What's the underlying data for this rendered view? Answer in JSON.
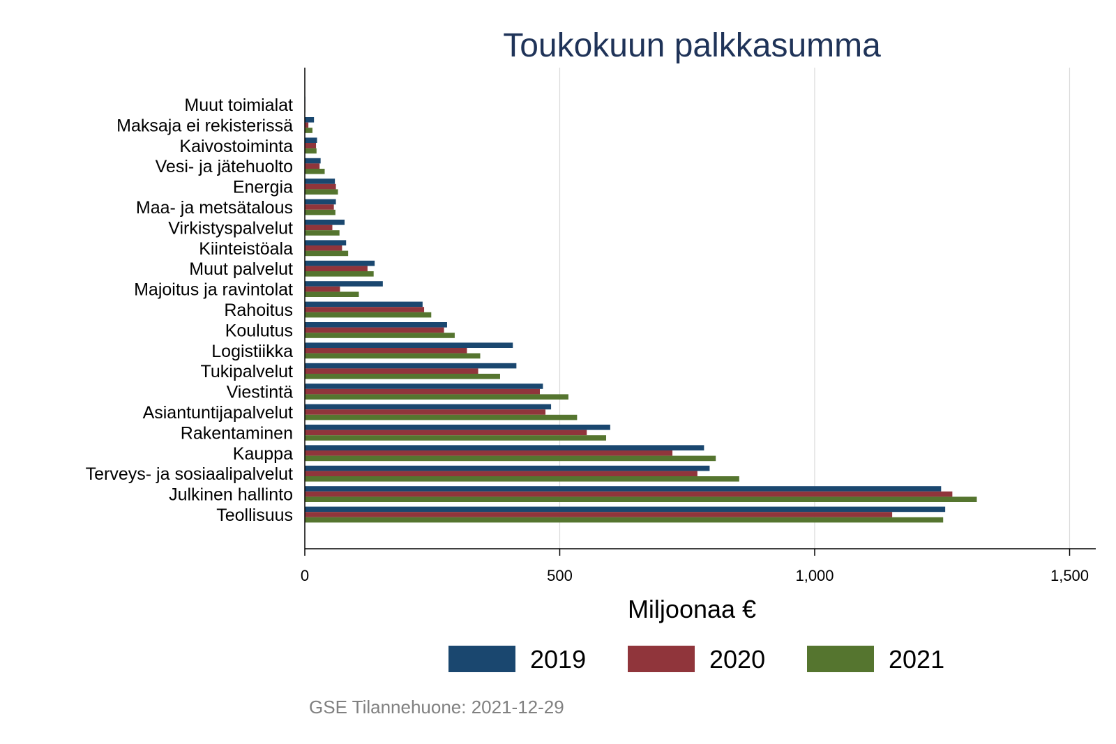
{
  "chart_data": {
    "type": "bar",
    "orientation": "horizontal",
    "title": "Toukokuun palkkasumma",
    "xlabel": "Miljoonaa €",
    "ylabel": "",
    "xlim": [
      0,
      1550
    ],
    "xticks": [
      0,
      500,
      1000,
      1500
    ],
    "xtick_labels": [
      "0",
      "500",
      "1,000",
      "1,500"
    ],
    "grid": "vertical",
    "legend_position": "bottom",
    "categories": [
      "Muut toimialat",
      "Maksaja ei rekisterissä",
      "Kaivostoiminta",
      "Vesi- ja jätehuolto",
      "Energia",
      "Maa- ja metsätalous",
      "Virkistyspalvelut",
      "Kiinteistöala",
      "Muut palvelut",
      "Majoitus ja ravintolat",
      "Rahoitus",
      "Koulutus",
      "Logistiikka",
      "Tukipalvelut",
      "Viestintä",
      "Asiantuntijapalvelut",
      "Rakentaminen",
      "Kauppa",
      "Terveys- ja sosiaalipalvelut",
      "Julkinen hallinto",
      "Teollisuus"
    ],
    "series": [
      {
        "name": "2019",
        "color": "#1a476f",
        "values": [
          1,
          18,
          24,
          31,
          59,
          61,
          78,
          81,
          137,
          153,
          231,
          279,
          408,
          415,
          467,
          483,
          599,
          783,
          794,
          1248,
          1256
        ]
      },
      {
        "name": "2020",
        "color": "#90353b",
        "values": [
          1,
          7,
          22,
          29,
          61,
          57,
          54,
          73,
          123,
          69,
          234,
          273,
          318,
          340,
          461,
          472,
          553,
          721,
          770,
          1270,
          1152
        ]
      },
      {
        "name": "2021",
        "color": "#55752f",
        "values": [
          1,
          15,
          23,
          39,
          65,
          60,
          68,
          85,
          135,
          106,
          248,
          294,
          344,
          383,
          517,
          534,
          591,
          806,
          852,
          1318,
          1252
        ]
      }
    ],
    "source": "GSE Tilannehuone: 2021-12-29"
  }
}
